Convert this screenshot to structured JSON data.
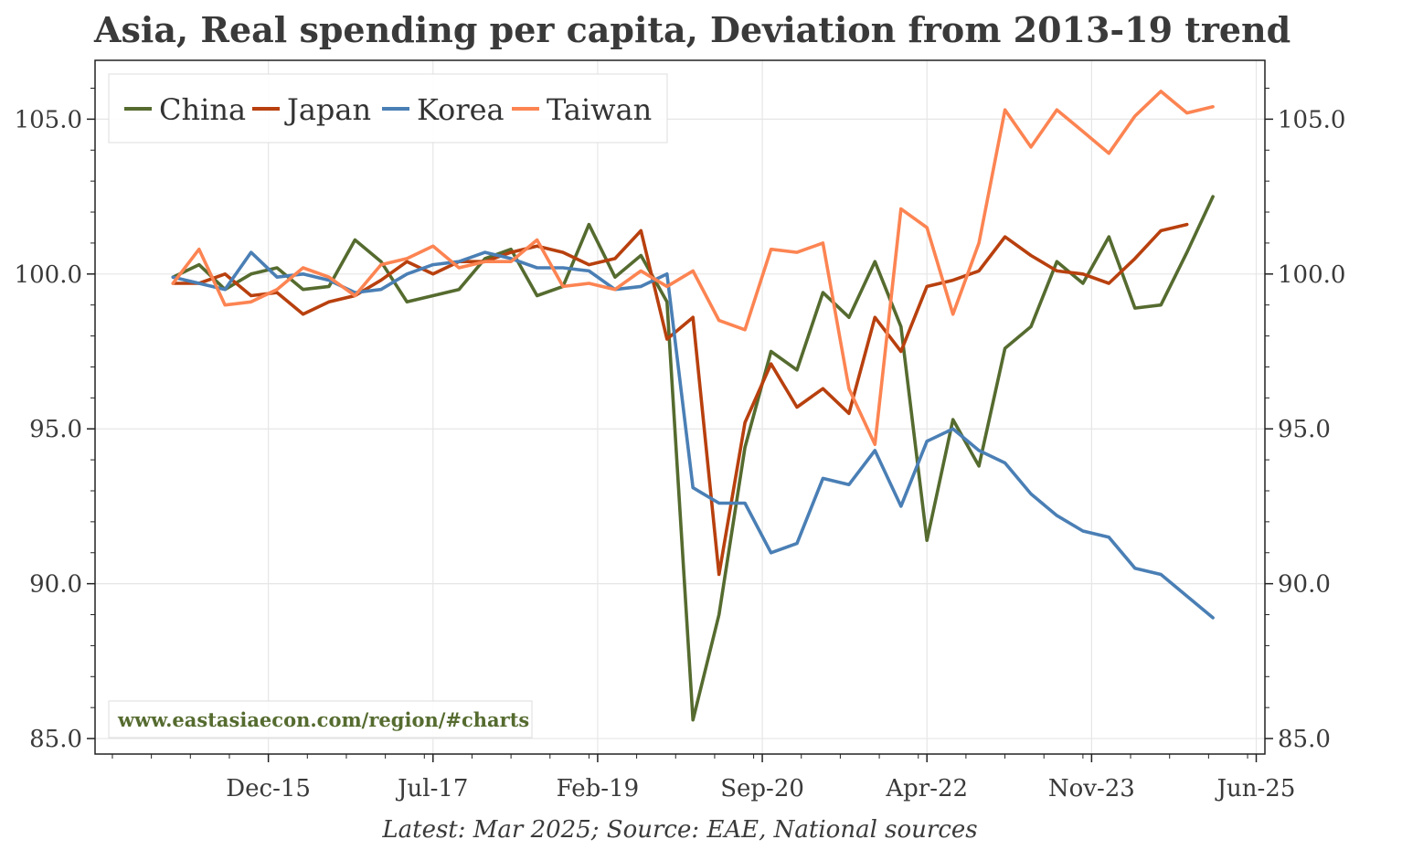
{
  "title": "Asia, Real spending per capita, Deviation from 2013-19 trend",
  "source": "Latest: Mar 2025; Source: EAE, National sources",
  "watermark": "www.eastasiaecon.com/region/#charts",
  "chart_data": {
    "type": "line",
    "title": "Asia, Real spending per capita, Deviation from 2013-19 trend",
    "xlabel": "",
    "ylabel": "",
    "x_is_time": true,
    "x_unit": "quarter start (YYYY-MM)",
    "x": [
      "2015-01",
      "2015-04",
      "2015-07",
      "2015-10",
      "2016-01",
      "2016-04",
      "2016-07",
      "2016-10",
      "2017-01",
      "2017-04",
      "2017-07",
      "2017-10",
      "2018-01",
      "2018-04",
      "2018-07",
      "2018-10",
      "2019-01",
      "2019-04",
      "2019-07",
      "2019-10",
      "2020-01",
      "2020-04",
      "2020-07",
      "2020-10",
      "2021-01",
      "2021-04",
      "2021-07",
      "2021-10",
      "2022-01",
      "2022-04",
      "2022-07",
      "2022-10",
      "2023-01",
      "2023-04",
      "2023-07",
      "2023-10",
      "2024-01",
      "2024-04",
      "2024-07",
      "2024-10",
      "2025-01"
    ],
    "xticks": [
      "Dec-15",
      "Jul-17",
      "Feb-19",
      "Sep-20",
      "Apr-22",
      "Nov-23",
      "Jun-25"
    ],
    "xtick_dates": [
      "2015-12",
      "2017-07",
      "2019-02",
      "2020-09",
      "2022-04",
      "2023-11",
      "2025-06"
    ],
    "xlim": [
      "2014-04",
      "2025-07"
    ],
    "ylim": [
      84.5,
      106.9
    ],
    "yticks": [
      "85.0",
      "90.0",
      "95.0",
      "100.0",
      "105.0"
    ],
    "ytick_values": [
      85,
      90,
      95,
      100,
      105
    ],
    "grid": true,
    "legend_position": "top-left",
    "series": [
      {
        "name": "China",
        "color": "#556b2f",
        "values": [
          99.9,
          100.3,
          99.5,
          100.0,
          100.2,
          99.5,
          99.6,
          101.1,
          100.4,
          99.1,
          99.3,
          99.5,
          100.5,
          100.8,
          99.3,
          99.6,
          101.6,
          99.9,
          100.6,
          99.1,
          85.6,
          89.0,
          94.4,
          97.5,
          96.9,
          99.4,
          98.6,
          100.4,
          98.3,
          91.4,
          95.3,
          93.8,
          97.6,
          98.3,
          100.4,
          99.7,
          101.2,
          98.9,
          99.0,
          100.7,
          102.5
        ]
      },
      {
        "name": "Japan",
        "color": "#b8400e",
        "values": [
          99.7,
          99.7,
          100.0,
          99.3,
          99.4,
          98.7,
          99.1,
          99.3,
          99.8,
          100.4,
          100.0,
          100.4,
          100.4,
          100.7,
          100.9,
          100.7,
          100.3,
          100.5,
          101.4,
          97.9,
          98.6,
          90.3,
          95.2,
          97.1,
          95.7,
          96.3,
          95.5,
          98.6,
          97.5,
          99.6,
          99.8,
          100.1,
          101.2,
          100.6,
          100.1,
          100.0,
          99.7,
          100.5,
          101.4,
          101.6,
          null
        ]
      },
      {
        "name": "Korea",
        "color": "#4a7fb5",
        "values": [
          99.9,
          99.7,
          99.5,
          100.7,
          99.9,
          100.0,
          99.8,
          99.4,
          99.5,
          100.0,
          100.3,
          100.4,
          100.7,
          100.5,
          100.2,
          100.2,
          100.1,
          99.5,
          99.6,
          100.0,
          93.1,
          92.6,
          92.6,
          91.0,
          91.3,
          93.4,
          93.2,
          94.3,
          92.5,
          94.6,
          95.0,
          94.3,
          93.9,
          92.9,
          92.2,
          91.7,
          91.5,
          90.5,
          90.3,
          89.6,
          88.9
        ]
      },
      {
        "name": "Taiwan",
        "color": "#fc8452",
        "values": [
          99.7,
          100.8,
          99.0,
          99.1,
          99.5,
          100.2,
          99.9,
          99.3,
          100.3,
          100.5,
          100.9,
          100.2,
          100.4,
          100.4,
          101.1,
          99.6,
          99.7,
          99.5,
          100.1,
          99.6,
          100.1,
          98.5,
          98.2,
          100.8,
          100.7,
          101.0,
          96.3,
          94.5,
          102.1,
          101.5,
          98.7,
          101.0,
          105.3,
          104.1,
          105.3,
          104.6,
          103.9,
          105.1,
          105.9,
          105.2,
          105.4
        ]
      }
    ]
  }
}
